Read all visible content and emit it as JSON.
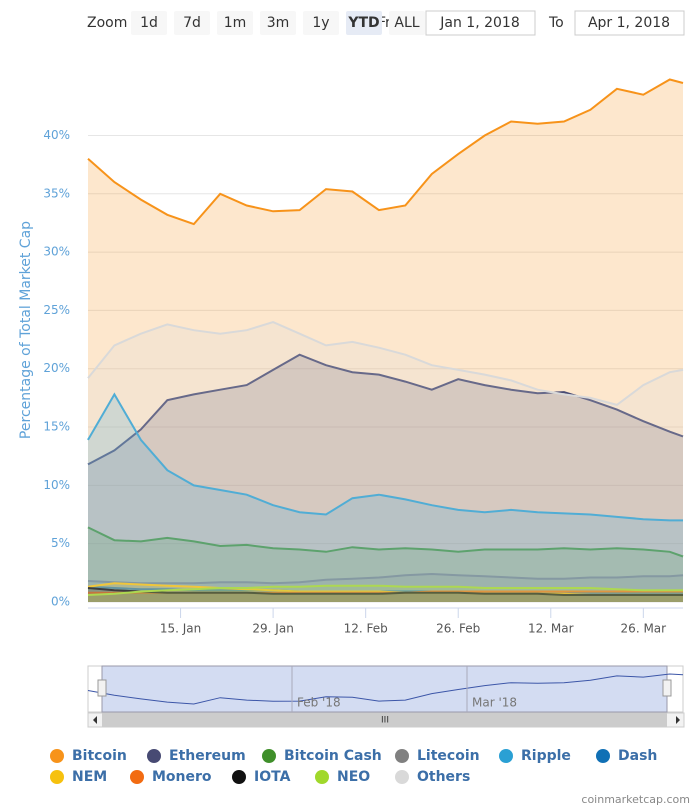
{
  "chart_data": {
    "type": "area",
    "zoom_label": "Zoom",
    "zoom_buttons": [
      "1d",
      "7d",
      "1m",
      "3m",
      "1y",
      "YTD",
      "ALL"
    ],
    "range_from_label": "From",
    "range_from": "Jan 1, 2018",
    "range_to_label": "To",
    "range_to": "Apr 1, 2018",
    "y_label": "Percentage of Total Market Cap",
    "x": [
      "2018-01-01",
      "2018-01-05",
      "2018-01-09",
      "2018-01-13",
      "2018-01-17",
      "2018-01-21",
      "2018-01-25",
      "2018-01-29",
      "2018-02-02",
      "2018-02-06",
      "2018-02-10",
      "2018-02-14",
      "2018-02-18",
      "2018-02-22",
      "2018-02-26",
      "2018-03-02",
      "2018-03-06",
      "2018-03-10",
      "2018-03-14",
      "2018-03-18",
      "2018-03-22",
      "2018-03-26",
      "2018-03-30",
      "2018-04-01"
    ],
    "xlim": [
      "2018-01-01",
      "2018-04-01"
    ],
    "xticks": [
      {
        "value": "2018-01-15",
        "label": "15. Jan"
      },
      {
        "value": "2018-01-29",
        "label": "29. Jan"
      },
      {
        "value": "2018-02-12",
        "label": "12. Feb"
      },
      {
        "value": "2018-02-26",
        "label": "26. Feb"
      },
      {
        "value": "2018-03-12",
        "label": "12. Mar"
      },
      {
        "value": "2018-03-26",
        "label": "26. Mar"
      }
    ],
    "ylim": [
      0,
      47.5
    ],
    "yticks": [
      {
        "value": 0,
        "label": "0%"
      },
      {
        "value": 5,
        "label": "5%"
      },
      {
        "value": 10,
        "label": "10%"
      },
      {
        "value": 15,
        "label": "15%"
      },
      {
        "value": 20,
        "label": "20%"
      },
      {
        "value": 25,
        "label": "25%"
      },
      {
        "value": 30,
        "label": "30%"
      },
      {
        "value": 35,
        "label": "35%"
      },
      {
        "value": 40,
        "label": "40%"
      }
    ],
    "grid": true,
    "series": [
      {
        "name": "Bitcoin",
        "color": "#f7931a",
        "values": [
          38,
          36,
          34.5,
          33.2,
          32.4,
          35,
          34,
          33.5,
          33.6,
          35.4,
          35.2,
          33.6,
          34,
          36.7,
          38.4,
          40,
          41.2,
          41,
          41.2,
          42.2,
          44,
          43.5,
          44.8,
          44.5
        ]
      },
      {
        "name": "Ethereum",
        "color": "#474a73",
        "values": [
          11.8,
          13,
          14.8,
          17.3,
          17.8,
          18.2,
          18.6,
          19.9,
          21.2,
          20.3,
          19.7,
          19.5,
          18.9,
          18.2,
          19.1,
          18.6,
          18.2,
          17.9,
          18,
          17.3,
          16.5,
          15.5,
          14.6,
          14.2
        ]
      },
      {
        "name": "Bitcoin Cash",
        "color": "#3f8f2a",
        "values": [
          6.4,
          5.3,
          5.2,
          5.5,
          5.2,
          4.8,
          4.9,
          4.6,
          4.5,
          4.3,
          4.7,
          4.5,
          4.6,
          4.5,
          4.3,
          4.5,
          4.5,
          4.5,
          4.6,
          4.5,
          4.6,
          4.5,
          4.3,
          3.9
        ]
      },
      {
        "name": "Litecoin",
        "color": "#808080",
        "values": [
          1.8,
          1.7,
          1.6,
          1.6,
          1.6,
          1.7,
          1.7,
          1.6,
          1.7,
          1.9,
          2.0,
          2.1,
          2.3,
          2.4,
          2.3,
          2.2,
          2.1,
          2.0,
          2.0,
          2.1,
          2.1,
          2.2,
          2.2,
          2.3
        ]
      },
      {
        "name": "Ripple",
        "color": "#2aa0d4",
        "values": [
          13.9,
          17.8,
          13.9,
          11.3,
          10,
          9.6,
          9.2,
          8.3,
          7.7,
          7.5,
          8.9,
          9.2,
          8.8,
          8.3,
          7.9,
          7.7,
          7.9,
          7.7,
          7.6,
          7.5,
          7.3,
          7.1,
          7,
          7
        ]
      },
      {
        "name": "Dash",
        "color": "#1070b5",
        "values": [
          1.3,
          1.2,
          1.1,
          1.1,
          1.0,
          1.0,
          1.0,
          1.0,
          0.9,
          0.9,
          0.9,
          0.9,
          0.9,
          0.9,
          0.9,
          0.8,
          0.8,
          0.8,
          0.8,
          0.8,
          0.8,
          0.8,
          0.8,
          0.8
        ]
      },
      {
        "name": "NEM",
        "color": "#f6c10e",
        "values": [
          1.3,
          1.6,
          1.5,
          1.4,
          1.3,
          1.2,
          1.1,
          1.0,
          0.9,
          0.9,
          0.9,
          0.9,
          0.8,
          0.8,
          0.8,
          0.7,
          0.7,
          0.7,
          0.7,
          0.6,
          0.6,
          0.6,
          0.6,
          0.6
        ]
      },
      {
        "name": "Monero",
        "color": "#f26b12",
        "values": [
          0.8,
          0.8,
          0.8,
          0.8,
          0.8,
          0.8,
          0.8,
          0.8,
          0.8,
          0.8,
          0.8,
          0.8,
          0.8,
          0.9,
          0.9,
          0.9,
          0.9,
          0.9,
          0.9,
          0.9,
          0.9,
          0.9,
          0.9,
          0.9
        ]
      },
      {
        "name": "IOTA",
        "color": "#111111",
        "values": [
          1.2,
          1.0,
          0.9,
          0.8,
          0.8,
          0.8,
          0.8,
          0.7,
          0.7,
          0.7,
          0.7,
          0.7,
          0.8,
          0.8,
          0.8,
          0.7,
          0.7,
          0.7,
          0.6,
          0.6,
          0.6,
          0.6,
          0.6,
          0.6
        ]
      },
      {
        "name": "NEO",
        "color": "#a0d82b",
        "values": [
          0.6,
          0.7,
          0.9,
          1.0,
          1.1,
          1.2,
          1.2,
          1.3,
          1.3,
          1.4,
          1.4,
          1.4,
          1.3,
          1.3,
          1.3,
          1.2,
          1.2,
          1.2,
          1.2,
          1.2,
          1.1,
          1.0,
          1.0,
          1.0
        ]
      },
      {
        "name": "Others",
        "color": "#d9d9d9",
        "values": [
          19.2,
          22,
          23,
          23.8,
          23.3,
          23,
          23.3,
          24,
          23,
          22,
          22.3,
          21.8,
          21.2,
          20.3,
          19.9,
          19.5,
          19,
          18.2,
          17.8,
          17.5,
          16.9,
          18.6,
          19.7,
          19.9
        ]
      }
    ],
    "navigator_labels": [
      "Feb '18",
      "Mar '18"
    ],
    "navigator_scroll_label": "III",
    "credit": "coinmarketcap.com"
  }
}
